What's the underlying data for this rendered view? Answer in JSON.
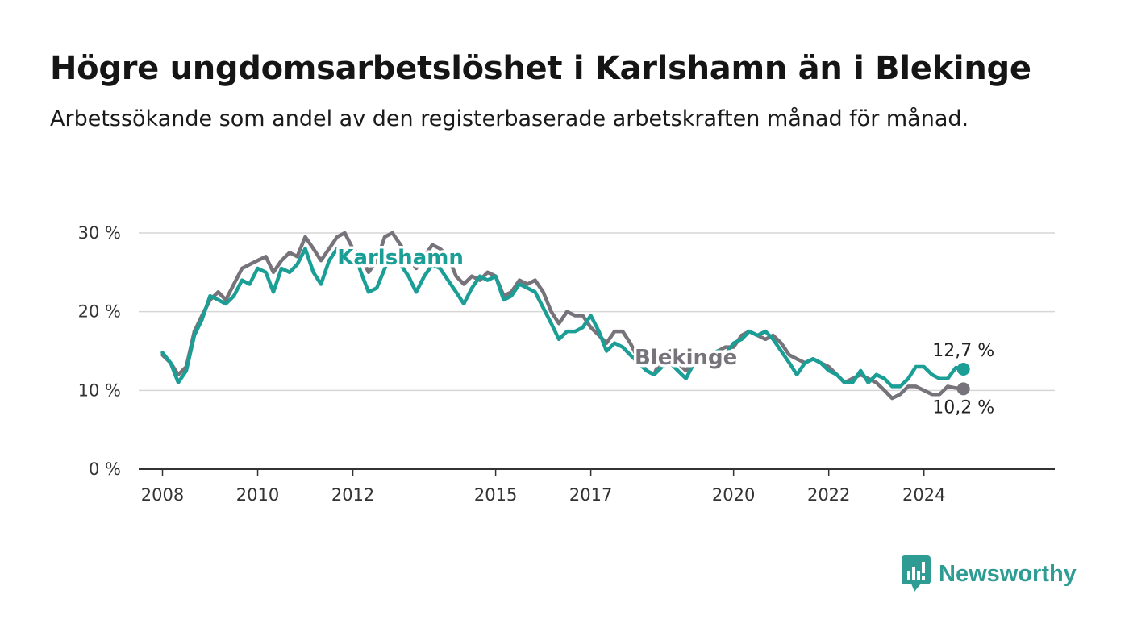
{
  "header": {
    "title": "Högre ungdomsarbetslöshet i Karlshamn än i Blekinge",
    "subtitle": "Arbetssökande som andel av den registerbaserade arbetskraften månad för månad."
  },
  "brand": {
    "name": "Newsworthy",
    "icon": "newsworthy-logo-icon",
    "color": "#2f9c94"
  },
  "chart_data": {
    "type": "line",
    "ylim": [
      0,
      30
    ],
    "yticks": [
      {
        "v": 0,
        "label": "0 %"
      },
      {
        "v": 10,
        "label": "10 %"
      },
      {
        "v": 20,
        "label": "20 %"
      },
      {
        "v": 30,
        "label": "30 %"
      }
    ],
    "xlim": [
      2007.5,
      2026.75
    ],
    "xticks": [
      {
        "v": 2008,
        "label": "2008"
      },
      {
        "v": 2010,
        "label": "2010"
      },
      {
        "v": 2012,
        "label": "2012"
      },
      {
        "v": 2015,
        "label": "2015"
      },
      {
        "v": 2017,
        "label": "2017"
      },
      {
        "v": 2020,
        "label": "2020"
      },
      {
        "v": 2022,
        "label": "2022"
      },
      {
        "v": 2024,
        "label": "2024"
      }
    ],
    "grid": true,
    "series": [
      {
        "name": "Blekinge",
        "color": "#76737a",
        "end_label": "10,2 %",
        "x": [
          2008.0,
          2008.17,
          2008.33,
          2008.5,
          2008.67,
          2008.83,
          2009.0,
          2009.17,
          2009.33,
          2009.5,
          2009.67,
          2009.83,
          2010.0,
          2010.17,
          2010.33,
          2010.5,
          2010.67,
          2010.83,
          2011.0,
          2011.17,
          2011.33,
          2011.5,
          2011.67,
          2011.83,
          2012.0,
          2012.17,
          2012.33,
          2012.5,
          2012.67,
          2012.83,
          2013.0,
          2013.17,
          2013.33,
          2013.5,
          2013.67,
          2013.83,
          2014.0,
          2014.17,
          2014.33,
          2014.5,
          2014.67,
          2014.83,
          2015.0,
          2015.17,
          2015.33,
          2015.5,
          2015.67,
          2015.83,
          2016.0,
          2016.17,
          2016.33,
          2016.5,
          2016.67,
          2016.83,
          2017.0,
          2017.17,
          2017.33,
          2017.5,
          2017.67,
          2017.83,
          2018.0,
          2018.17,
          2018.33,
          2018.5,
          2018.67,
          2018.83,
          2019.0,
          2019.17,
          2019.33,
          2019.5,
          2019.67,
          2019.83,
          2020.0,
          2020.17,
          2020.33,
          2020.5,
          2020.67,
          2020.83,
          2021.0,
          2021.17,
          2021.33,
          2021.5,
          2021.67,
          2021.83,
          2022.0,
          2022.17,
          2022.33,
          2022.5,
          2022.67,
          2022.83,
          2023.0,
          2023.17,
          2023.33,
          2023.5,
          2023.67,
          2023.83,
          2024.0,
          2024.17,
          2024.33,
          2024.5,
          2024.67,
          2024.83
        ],
        "y": [
          14.5,
          13.5,
          12.0,
          13.0,
          17.5,
          19.5,
          21.5,
          22.5,
          21.5,
          23.5,
          25.5,
          26.0,
          26.5,
          27.0,
          25.0,
          26.5,
          27.5,
          27.0,
          29.5,
          28.0,
          26.5,
          28.0,
          29.5,
          30.0,
          28.0,
          27.0,
          25.0,
          26.5,
          29.5,
          30.0,
          28.5,
          27.0,
          25.5,
          27.0,
          28.5,
          28.0,
          27.0,
          24.5,
          23.5,
          24.5,
          24.0,
          25.0,
          24.5,
          22.0,
          22.5,
          24.0,
          23.5,
          24.0,
          22.5,
          20.0,
          18.5,
          20.0,
          19.5,
          19.5,
          18.0,
          17.0,
          16.0,
          17.5,
          17.5,
          16.0,
          14.0,
          12.5,
          12.0,
          14.5,
          15.0,
          13.5,
          12.5,
          14.0,
          14.5,
          14.5,
          15.0,
          15.5,
          15.5,
          17.0,
          17.5,
          17.0,
          16.5,
          17.0,
          16.0,
          14.5,
          14.0,
          13.5,
          14.0,
          13.5,
          13.0,
          12.0,
          11.0,
          11.5,
          12.0,
          11.5,
          11.0,
          10.0,
          9.0,
          9.5,
          10.5,
          10.5,
          10.0,
          9.5,
          9.5,
          10.5,
          10.3,
          10.2
        ]
      },
      {
        "name": "Karlshamn",
        "color": "#1a9e95",
        "end_label": "12,7 %",
        "x": [
          2008.0,
          2008.17,
          2008.33,
          2008.5,
          2008.67,
          2008.83,
          2009.0,
          2009.17,
          2009.33,
          2009.5,
          2009.67,
          2009.83,
          2010.0,
          2010.17,
          2010.33,
          2010.5,
          2010.67,
          2010.83,
          2011.0,
          2011.17,
          2011.33,
          2011.5,
          2011.67,
          2011.83,
          2012.0,
          2012.17,
          2012.33,
          2012.5,
          2012.67,
          2012.83,
          2013.0,
          2013.17,
          2013.33,
          2013.5,
          2013.67,
          2013.83,
          2014.0,
          2014.17,
          2014.33,
          2014.5,
          2014.67,
          2014.83,
          2015.0,
          2015.17,
          2015.33,
          2015.5,
          2015.67,
          2015.83,
          2016.0,
          2016.17,
          2016.33,
          2016.5,
          2016.67,
          2016.83,
          2017.0,
          2017.17,
          2017.33,
          2017.5,
          2017.67,
          2017.83,
          2018.0,
          2018.17,
          2018.33,
          2018.5,
          2018.67,
          2018.83,
          2019.0,
          2019.17,
          2019.33,
          2019.5,
          2019.67,
          2019.83,
          2020.0,
          2020.17,
          2020.33,
          2020.5,
          2020.67,
          2020.83,
          2021.0,
          2021.17,
          2021.33,
          2021.5,
          2021.67,
          2021.83,
          2022.0,
          2022.17,
          2022.33,
          2022.5,
          2022.67,
          2022.83,
          2023.0,
          2023.17,
          2023.33,
          2023.5,
          2023.67,
          2023.83,
          2024.0,
          2024.17,
          2024.33,
          2024.5,
          2024.67,
          2024.83
        ],
        "y": [
          14.8,
          13.5,
          11.0,
          12.5,
          17.0,
          19.0,
          22.0,
          21.5,
          21.0,
          22.0,
          24.0,
          23.5,
          25.5,
          25.0,
          22.5,
          25.5,
          25.0,
          26.0,
          28.0,
          25.0,
          23.5,
          26.5,
          28.0,
          27.5,
          28.0,
          25.0,
          22.5,
          23.0,
          25.5,
          27.5,
          26.0,
          24.5,
          22.5,
          24.5,
          26.0,
          25.5,
          24.0,
          22.5,
          21.0,
          23.0,
          24.5,
          24.0,
          24.5,
          21.5,
          22.0,
          23.5,
          23.0,
          22.5,
          20.5,
          18.5,
          16.5,
          17.5,
          17.5,
          18.0,
          19.5,
          17.5,
          15.0,
          16.0,
          15.5,
          14.5,
          13.5,
          12.5,
          12.0,
          13.0,
          13.5,
          12.5,
          11.5,
          13.5,
          14.5,
          14.5,
          15.0,
          14.5,
          16.0,
          16.5,
          17.5,
          17.0,
          17.5,
          16.5,
          15.0,
          13.5,
          12.0,
          13.5,
          14.0,
          13.5,
          12.5,
          12.0,
          11.0,
          11.0,
          12.5,
          11.0,
          12.0,
          11.5,
          10.5,
          10.5,
          11.5,
          13.0,
          13.0,
          12.0,
          11.5,
          11.5,
          12.9,
          12.7
        ]
      }
    ]
  }
}
